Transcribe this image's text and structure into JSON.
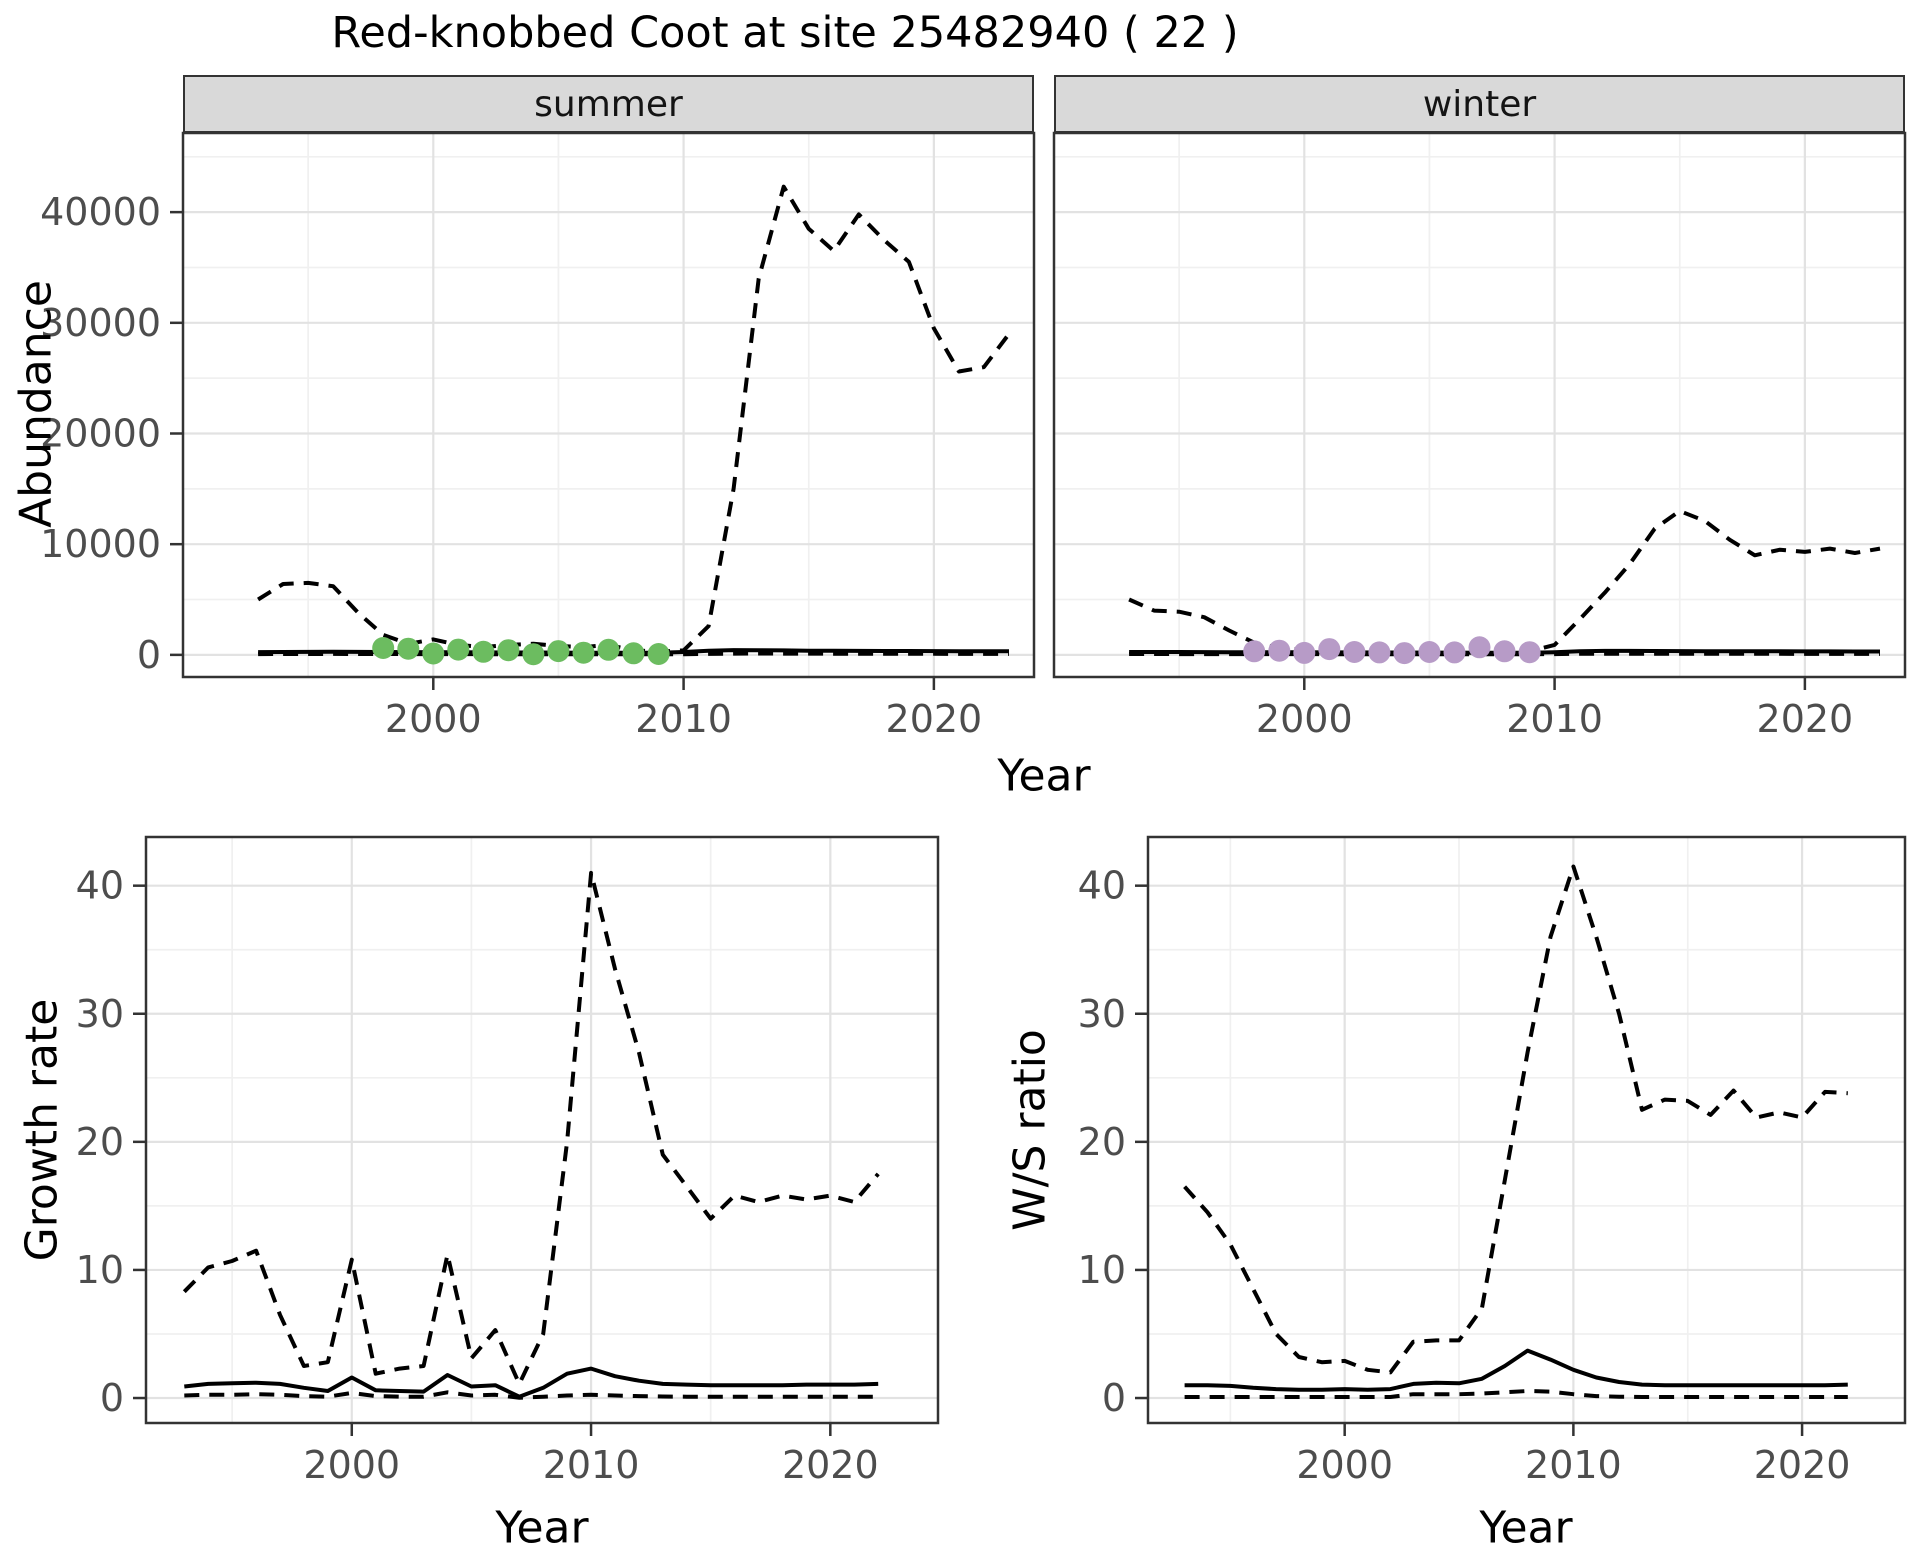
{
  "title": "Red-knobbed Coot at site 25482940 ( 22 )",
  "axis_titles": {
    "top_y": "Abundance",
    "top_x": "Year",
    "bottom_left_y": "Growth rate",
    "bottom_left_x": "Year",
    "bottom_right_y": "W/S ratio",
    "bottom_right_x": "Year"
  },
  "colors": {
    "line": "#000000",
    "summer_points": "#6cbc60",
    "winter_points": "#b79bc7",
    "strip_bg": "#d9d9d9",
    "panel_border": "#333333",
    "grid_major": "#e2e2e2",
    "grid_minor": "#f0f0f0",
    "tick_label": "#4d4d4d",
    "tick_mark": "#333333"
  },
  "chart_data": [
    {
      "id": "abundance-summer",
      "type": "line",
      "facet_label": "summer",
      "xlabel": "Year",
      "ylabel": "Abundance",
      "xlim": [
        1990,
        2024
      ],
      "ylim": [
        -2000,
        47150
      ],
      "x_ticks": [
        2000,
        2010,
        2020
      ],
      "y_ticks": [
        0,
        10000,
        20000,
        30000,
        40000
      ],
      "show_y_tick_labels": true,
      "grid": true,
      "x": [
        1993,
        1994,
        1995,
        1996,
        1997,
        1998,
        1999,
        2000,
        2001,
        2002,
        2003,
        2004,
        2005,
        2006,
        2007,
        2008,
        2009,
        2010,
        2011,
        2012,
        2013,
        2014,
        2015,
        2016,
        2017,
        2018,
        2019,
        2020,
        2021,
        2022,
        2023
      ],
      "series": [
        {
          "name": "upper-ci",
          "style": "dashed",
          "values": [
            5000,
            6400,
            6500,
            6200,
            3800,
            1800,
            1000,
            1400,
            900,
            700,
            900,
            1000,
            800,
            700,
            900,
            400,
            300,
            400,
            2600,
            15000,
            34000,
            42300,
            38500,
            36500,
            39800,
            37500,
            35500,
            29500,
            25600,
            26000,
            29000
          ]
        },
        {
          "name": "estimate",
          "style": "solid",
          "values": [
            250,
            260,
            270,
            280,
            270,
            260,
            250,
            240,
            230,
            220,
            215,
            210,
            205,
            200,
            200,
            195,
            190,
            260,
            380,
            430,
            420,
            400,
            380,
            370,
            360,
            350,
            345,
            340,
            335,
            330,
            330
          ]
        },
        {
          "name": "lower-ci",
          "style": "dashed",
          "values": [
            70,
            75,
            80,
            85,
            80,
            75,
            70,
            70,
            65,
            60,
            60,
            60,
            55,
            55,
            55,
            50,
            50,
            60,
            90,
            110,
            120,
            115,
            110,
            105,
            100,
            100,
            95,
            95,
            90,
            90,
            90
          ]
        }
      ],
      "points": {
        "name": "observed-count",
        "color": "#6cbc60",
        "x": [
          1998,
          1999,
          2000,
          2001,
          2002,
          2003,
          2004,
          2005,
          2006,
          2007,
          2008,
          2009
        ],
        "y": [
          620,
          560,
          120,
          480,
          280,
          420,
          60,
          340,
          200,
          460,
          140,
          80
        ]
      }
    },
    {
      "id": "abundance-winter",
      "type": "line",
      "facet_label": "winter",
      "xlabel": "Year",
      "ylabel": "Abundance",
      "xlim": [
        1990,
        2024
      ],
      "ylim": [
        -2000,
        47150
      ],
      "x_ticks": [
        2000,
        2010,
        2020
      ],
      "y_ticks": [
        0,
        10000,
        20000,
        30000,
        40000
      ],
      "show_y_tick_labels": false,
      "grid": true,
      "x": [
        1993,
        1994,
        1995,
        1996,
        1997,
        1998,
        1999,
        2000,
        2001,
        2002,
        2003,
        2004,
        2005,
        2006,
        2007,
        2008,
        2009,
        2010,
        2011,
        2012,
        2013,
        2014,
        2015,
        2016,
        2017,
        2018,
        2019,
        2020,
        2021,
        2022,
        2023
      ],
      "series": [
        {
          "name": "upper-ci",
          "style": "dashed",
          "values": [
            5000,
            4000,
            3900,
            3400,
            2200,
            1100,
            600,
            450,
            400,
            350,
            320,
            350,
            320,
            350,
            420,
            350,
            320,
            900,
            3200,
            5600,
            8200,
            11400,
            13000,
            12100,
            10400,
            9000,
            9500,
            9300,
            9600,
            9200,
            9600
          ]
        },
        {
          "name": "estimate",
          "style": "solid",
          "values": [
            260,
            260,
            255,
            250,
            245,
            240,
            235,
            230,
            225,
            220,
            215,
            210,
            205,
            205,
            200,
            200,
            195,
            240,
            320,
            360,
            355,
            345,
            340,
            335,
            330,
            325,
            320,
            315,
            310,
            305,
            300
          ]
        },
        {
          "name": "lower-ci",
          "style": "dashed",
          "values": [
            75,
            75,
            73,
            72,
            70,
            68,
            66,
            65,
            64,
            62,
            60,
            60,
            58,
            58,
            57,
            56,
            55,
            65,
            95,
            105,
            104,
            102,
            100,
            98,
            96,
            94,
            92,
            90,
            88,
            86,
            85
          ]
        }
      ],
      "points": {
        "name": "observed-count",
        "color": "#b79bc7",
        "x": [
          1998,
          1999,
          2000,
          2001,
          2002,
          2003,
          2004,
          2005,
          2006,
          2007,
          2008,
          2009
        ],
        "y": [
          320,
          380,
          180,
          520,
          260,
          220,
          160,
          260,
          220,
          680,
          320,
          240
        ]
      }
    },
    {
      "id": "growth-rate",
      "type": "line",
      "facet_label": "",
      "xlabel": "Year",
      "ylabel": "Growth rate",
      "xlim": [
        1991.4,
        2024.5
      ],
      "ylim": [
        -1.95,
        43.8
      ],
      "x_ticks": [
        2000,
        2010,
        2020
      ],
      "y_ticks": [
        0,
        10,
        20,
        30,
        40
      ],
      "show_y_tick_labels": true,
      "grid": true,
      "x": [
        1993,
        1994,
        1995,
        1996,
        1997,
        1998,
        1999,
        2000,
        2001,
        2002,
        2003,
        2004,
        2005,
        2006,
        2007,
        2008,
        2009,
        2010,
        2011,
        2012,
        2013,
        2014,
        2015,
        2016,
        2017,
        2018,
        2019,
        2020,
        2021,
        2022
      ],
      "series": [
        {
          "name": "upper-ci",
          "style": "dashed",
          "values": [
            8.3,
            10.2,
            10.7,
            11.5,
            6.5,
            2.5,
            2.8,
            10.8,
            1.9,
            2.3,
            2.5,
            11.2,
            3.1,
            5.3,
            1.1,
            5,
            20,
            41,
            33.5,
            27,
            19,
            16.5,
            14,
            15.8,
            15.3,
            15.8,
            15.5,
            15.8,
            15.3,
            17.5
          ]
        },
        {
          "name": "estimate",
          "style": "solid",
          "values": [
            0.9,
            1.1,
            1.15,
            1.2,
            1.1,
            0.8,
            0.55,
            1.6,
            0.6,
            0.55,
            0.5,
            1.8,
            0.9,
            1.0,
            0.1,
            0.8,
            1.9,
            2.3,
            1.7,
            1.35,
            1.1,
            1.05,
            1.0,
            1.0,
            1.0,
            1.0,
            1.05,
            1.05,
            1.05,
            1.1
          ]
        },
        {
          "name": "lower-ci",
          "style": "dashed",
          "values": [
            0.2,
            0.25,
            0.25,
            0.3,
            0.25,
            0.15,
            0.1,
            0.4,
            0.15,
            0.1,
            0.1,
            0.45,
            0.2,
            0.25,
            0.02,
            0.1,
            0.2,
            0.25,
            0.2,
            0.15,
            0.12,
            0.1,
            0.1,
            0.1,
            0.1,
            0.1,
            0.1,
            0.1,
            0.1,
            0.1
          ]
        }
      ],
      "points": null
    },
    {
      "id": "ws-ratio",
      "type": "line",
      "facet_label": "",
      "xlabel": "Year",
      "ylabel": "W/S ratio",
      "xlim": [
        1991.4,
        2024.5
      ],
      "ylim": [
        -1.95,
        43.8
      ],
      "x_ticks": [
        2000,
        2010,
        2020
      ],
      "y_ticks": [
        0,
        10,
        20,
        30,
        40
      ],
      "show_y_tick_labels": true,
      "grid": true,
      "x": [
        1993,
        1994,
        1995,
        1996,
        1997,
        1998,
        1999,
        2000,
        2001,
        2002,
        2003,
        2004,
        2005,
        2006,
        2007,
        2008,
        2009,
        2010,
        2011,
        2012,
        2013,
        2014,
        2015,
        2016,
        2017,
        2018,
        2019,
        2020,
        2021,
        2022
      ],
      "series": [
        {
          "name": "upper-ci",
          "style": "dashed",
          "values": [
            16.5,
            14.5,
            12,
            8.5,
            5,
            3.2,
            2.8,
            2.9,
            2.2,
            2.0,
            4.4,
            4.5,
            4.5,
            7,
            17,
            27,
            36,
            41.5,
            36,
            30,
            22.5,
            23.3,
            23.2,
            22.1,
            24,
            21.9,
            22.3,
            21.9,
            23.9,
            23.8
          ]
        },
        {
          "name": "estimate",
          "style": "solid",
          "values": [
            1.0,
            1.0,
            0.95,
            0.8,
            0.7,
            0.65,
            0.65,
            0.7,
            0.65,
            0.7,
            1.1,
            1.2,
            1.15,
            1.5,
            2.5,
            3.7,
            3.0,
            2.2,
            1.6,
            1.25,
            1.05,
            1.0,
            1.0,
            1.0,
            1.0,
            1.0,
            1.0,
            1.0,
            1.0,
            1.05
          ]
        },
        {
          "name": "lower-ci",
          "style": "dashed",
          "values": [
            0.08,
            0.08,
            0.08,
            0.08,
            0.08,
            0.08,
            0.08,
            0.08,
            0.08,
            0.08,
            0.3,
            0.3,
            0.3,
            0.35,
            0.45,
            0.55,
            0.5,
            0.3,
            0.15,
            0.1,
            0.08,
            0.08,
            0.08,
            0.08,
            0.08,
            0.08,
            0.08,
            0.08,
            0.08,
            0.08
          ]
        }
      ],
      "points": null
    }
  ]
}
